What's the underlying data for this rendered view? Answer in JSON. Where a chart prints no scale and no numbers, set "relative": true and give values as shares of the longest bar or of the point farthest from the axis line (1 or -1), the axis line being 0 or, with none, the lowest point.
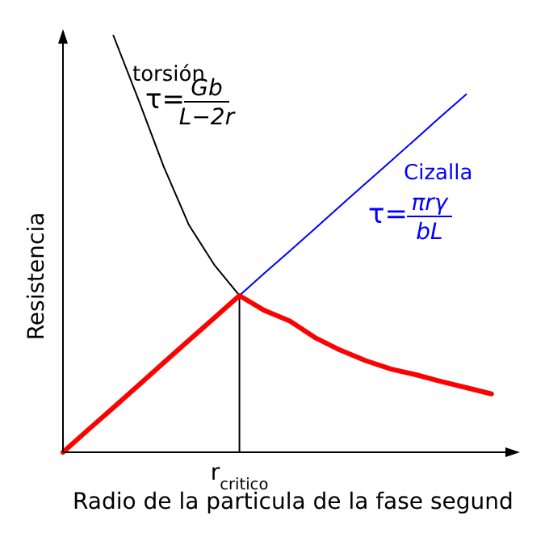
{
  "chart_data": {
    "type": "line",
    "relative": true,
    "xlabel": "Radio de la particula de la fase segund",
    "ylabel": "Resistencia",
    "categories": [
      null,
      null,
      null,
      null,
      null,
      null,
      null,
      null,
      null,
      null,
      null,
      null,
      null,
      null,
      null,
      null,
      null,
      null
    ],
    "legend": false,
    "marker": "none",
    "line_style": "solid",
    "series": [
      {
        "name": "torsión",
        "color": "#000000",
        "values": [
          null,
          null,
          1.0,
          0.845,
          0.685,
          0.545,
          0.45,
          0.376,
          null,
          null,
          null,
          null,
          null,
          null,
          null,
          null,
          null,
          null
        ]
      },
      {
        "name": "Cizalla",
        "color": "#0000ff",
        "values": [
          null,
          null,
          null,
          null,
          null,
          null,
          null,
          0.376,
          0.43,
          0.483,
          0.537,
          0.591,
          0.645,
          0.698,
          0.752,
          0.806,
          0.859,
          null
        ]
      },
      {
        "color": "#ff0000",
        "values": [
          0,
          0.054,
          0.107,
          0.161,
          0.215,
          0.269,
          0.322,
          0.376,
          0.34,
          0.315,
          0.275,
          0.245,
          0.22,
          0.2,
          0.186,
          0.17,
          0.155,
          0.14
        ]
      }
    ],
    "annotations": [
      "τ=",
      "Gb",
      "L−2r",
      "τ=",
      "πrγ",
      "bL",
      "r$_{critico}$"
    ]
  }
}
